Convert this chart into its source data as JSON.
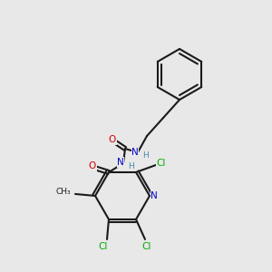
{
  "background_color": "#e8e8e8",
  "figsize": [
    3.0,
    3.0
  ],
  "dpi": 100,
  "bond_color": "#1a1a1a",
  "bond_lw": 1.5,
  "atom_colors": {
    "C": "#1a1a1a",
    "N": "#0000cc",
    "O": "#cc0000",
    "Cl": "#00aa00",
    "H": "#4488aa"
  },
  "font_size": 7.5
}
